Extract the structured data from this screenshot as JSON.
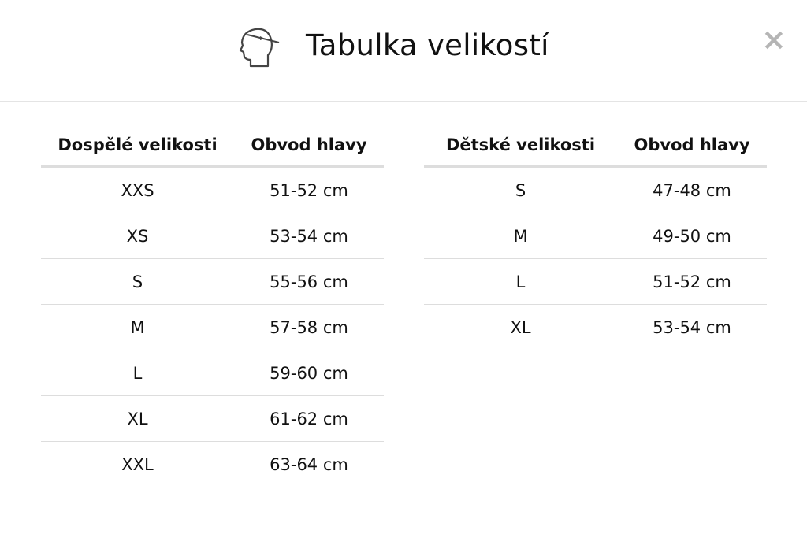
{
  "header": {
    "title": "Tabulka velikostí",
    "icon": "head-measure-icon",
    "close_icon": "close-icon",
    "close_label": "×"
  },
  "adult": {
    "headers": [
      "Dospělé velikosti",
      "Obvod hlavy"
    ],
    "rows": [
      [
        "XXS",
        "51-52 cm"
      ],
      [
        "XS",
        "53-54 cm"
      ],
      [
        "S",
        "55-56 cm"
      ],
      [
        "M",
        "57-58 cm"
      ],
      [
        "L",
        "59-60 cm"
      ],
      [
        "XL",
        "61-62 cm"
      ],
      [
        "XXL",
        "63-64 cm"
      ]
    ]
  },
  "kids": {
    "headers": [
      "Dětské velikosti",
      "Obvod hlavy"
    ],
    "rows": [
      [
        "S",
        "47-48 cm"
      ],
      [
        "M",
        "49-50 cm"
      ],
      [
        "L",
        "51-52 cm"
      ],
      [
        "XL",
        "53-54 cm"
      ]
    ]
  }
}
